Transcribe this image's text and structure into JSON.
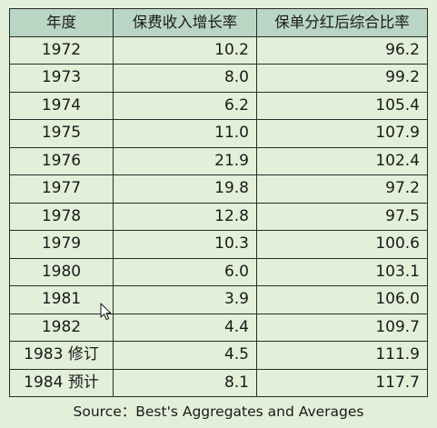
{
  "table": {
    "headers": [
      "年度",
      "保费收入增长率",
      "保单分红后综合比率"
    ],
    "rows": [
      [
        "1972",
        "10.2",
        "96.2"
      ],
      [
        "1973",
        "8.0",
        "99.2"
      ],
      [
        "1974",
        "6.2",
        "105.4"
      ],
      [
        "1975",
        "11.0",
        "107.9"
      ],
      [
        "1976",
        "21.9",
        "102.4"
      ],
      [
        "1977",
        "19.8",
        "97.2"
      ],
      [
        "1978",
        "12.8",
        "97.5"
      ],
      [
        "1979",
        "10.3",
        "100.6"
      ],
      [
        "1980",
        "6.0",
        "103.1"
      ],
      [
        "1981",
        "3.9",
        "106.0"
      ],
      [
        "1982",
        "4.4",
        "109.7"
      ],
      [
        "1983 修订",
        "4.5",
        "111.9"
      ],
      [
        "1984 预计",
        "8.1",
        "117.7"
      ]
    ]
  },
  "source": "Source：Best's Aggregates and Averages",
  "cursor_icon": "arrow-cursor-icon",
  "colors": {
    "background": "#e2efd9",
    "header_fill": "#b9d5c4",
    "border": "#2b2b2b"
  }
}
